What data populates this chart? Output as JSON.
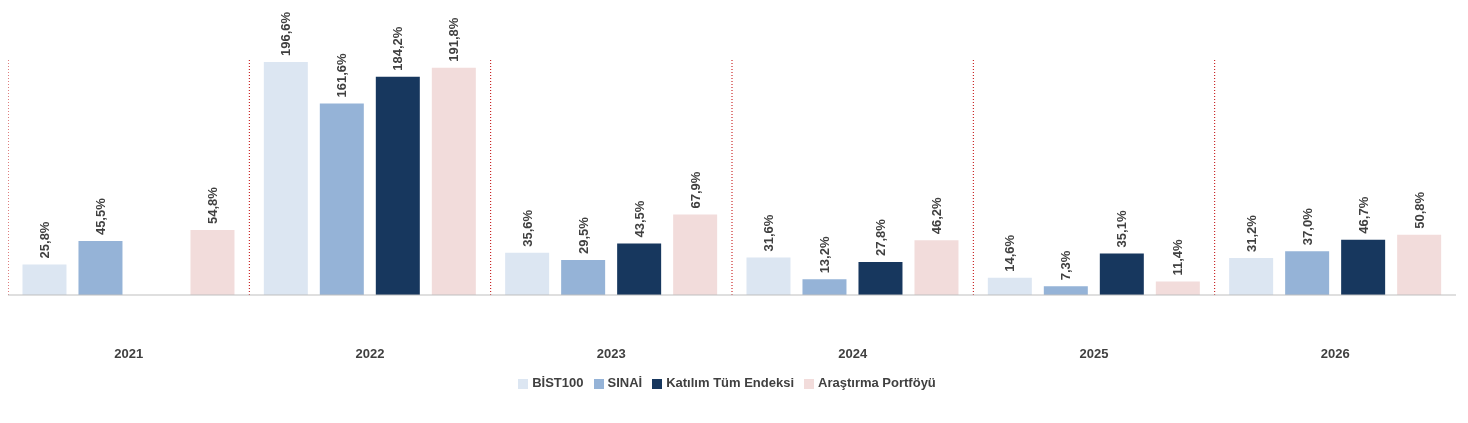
{
  "chart_data": {
    "type": "bar",
    "categories": [
      "2021",
      "2022",
      "2023",
      "2024",
      "2025",
      "2026"
    ],
    "series": [
      {
        "name": "BİST100",
        "color": "#dce6f2",
        "values": [
          25.8,
          196.6,
          35.6,
          31.6,
          14.6,
          31.2
        ],
        "value_labels": [
          "25,8%",
          "196,6%",
          "35,6%",
          "31,6%",
          "14,6%",
          "31,2%"
        ]
      },
      {
        "name": "SINAİ",
        "color": "#95b3d7",
        "values": [
          45.5,
          161.6,
          29.5,
          13.2,
          7.3,
          37.0
        ],
        "value_labels": [
          "45,5%",
          "161,6%",
          "29,5%",
          "13,2%",
          "7,3%",
          "37,0%"
        ]
      },
      {
        "name": "Katılım Tüm Endeksi",
        "color": "#17375e",
        "values": [
          null,
          184.2,
          43.5,
          27.8,
          35.1,
          46.7
        ],
        "value_labels": [
          null,
          "184,2%",
          "43,5%",
          "27,8%",
          "35,1%",
          "46,7%"
        ]
      },
      {
        "name": "Araştırma Portföyü",
        "color": "#f2dcdb",
        "values": [
          54.8,
          191.8,
          67.9,
          46.2,
          11.4,
          50.8
        ],
        "value_labels": [
          "54,8%",
          "191,8%",
          "67,9%",
          "46,2%",
          "11,4%",
          "50,8%"
        ]
      }
    ],
    "grid": "x",
    "legend": "bottom"
  }
}
